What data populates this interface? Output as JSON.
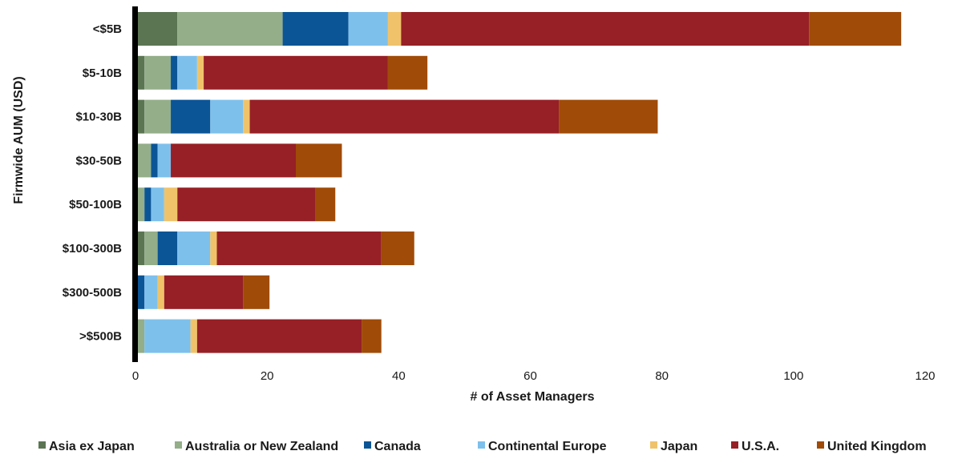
{
  "chart_data": {
    "type": "bar",
    "orientation": "horizontal",
    "stacked": true,
    "categories": [
      "<$5B",
      "$5-10B",
      "$10-30B",
      "$30-50B",
      "$50-100B",
      "$100-300B",
      "$300-500B",
      ">$500B"
    ],
    "series": [
      {
        "name": "Asia ex Japan",
        "color": "#5b7553",
        "values": [
          6,
          1,
          1,
          0,
          0,
          1,
          0,
          0
        ]
      },
      {
        "name": "Australia or New Zealand",
        "color": "#93ae89",
        "values": [
          16,
          4,
          4,
          2,
          1,
          2,
          0,
          1
        ]
      },
      {
        "name": "Canada",
        "color": "#0b5596",
        "values": [
          10,
          1,
          6,
          1,
          1,
          3,
          1,
          0
        ]
      },
      {
        "name": "Continental Europe",
        "color": "#7ec0ec",
        "values": [
          6,
          3,
          5,
          2,
          2,
          5,
          2,
          7
        ]
      },
      {
        "name": "Japan",
        "color": "#f0c36a",
        "values": [
          2,
          1,
          1,
          0,
          2,
          1,
          1,
          1
        ]
      },
      {
        "name": "U.S.A.",
        "color": "#962026",
        "values": [
          62,
          28,
          47,
          19,
          21,
          25,
          12,
          25
        ]
      },
      {
        "name": "United Kingdom",
        "color": "#a04b08",
        "values": [
          14,
          6,
          15,
          7,
          3,
          5,
          4,
          3
        ]
      }
    ],
    "xlim": [
      0,
      120
    ],
    "xticks": [
      "0",
      "20",
      "40",
      "60",
      "80",
      "100",
      "120"
    ],
    "xlabel": "# of Asset Managers",
    "ylabel": "Firmwide AUM (USD)",
    "legend_position": "bottom",
    "grid": false
  }
}
